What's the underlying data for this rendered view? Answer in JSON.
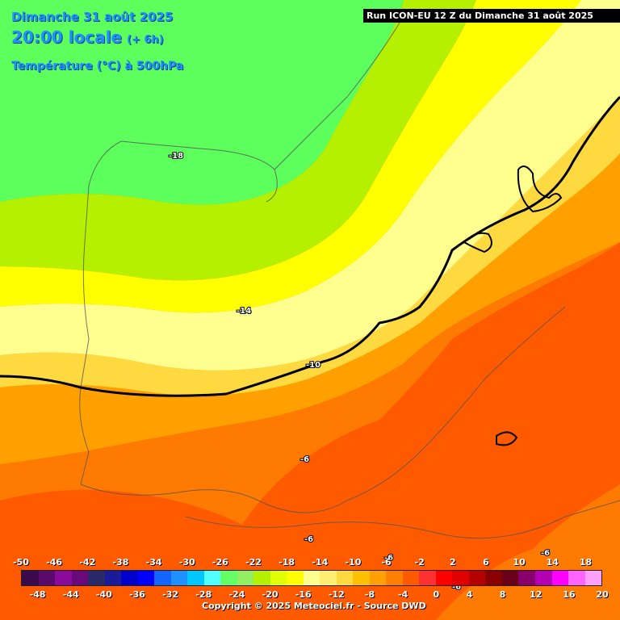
{
  "header": {
    "date": "Dimanche 31 août 2025",
    "time": "20:00 locale",
    "offset": "(+ 6h)",
    "parameter": "Température (°C) à 500hPa"
  },
  "run_label": "Run ICON-EU 12 Z du Dimanche 31 août 2025",
  "contour_labels": [
    "-18",
    "-14",
    "-10",
    "-6",
    "-6",
    "-6",
    "-6",
    "-6"
  ],
  "legend": {
    "top_labels": [
      "-50",
      "-46",
      "-42",
      "-38",
      "-34",
      "-30",
      "-26",
      "-22",
      "-18",
      "-14",
      "-10",
      "-6",
      "-2",
      "2",
      "6",
      "10",
      "14",
      "18"
    ],
    "bottom_labels": [
      "-48",
      "-44",
      "-40",
      "-36",
      "-32",
      "-28",
      "-24",
      "-20",
      "-16",
      "-12",
      "-8",
      "-4",
      "0",
      "4",
      "8",
      "12",
      "16",
      "20"
    ],
    "colors": [
      "#3a0a4a",
      "#5a0a6a",
      "#8a0a9a",
      "#6a0a7a",
      "#2a2a6a",
      "#1a1a9a",
      "#0000cc",
      "#0000ff",
      "#1464ff",
      "#1e90ff",
      "#00c8ff",
      "#50ffff",
      "#64ff64",
      "#90ee60",
      "#b4f000",
      "#e0ff00",
      "#ffff00",
      "#ffff90",
      "#ffef70",
      "#ffd940",
      "#ffc000",
      "#ffa000",
      "#ff8000",
      "#ff5a00",
      "#ff3030",
      "#ff0000",
      "#e00000",
      "#b40000",
      "#8a0000",
      "#6a0018",
      "#8a006a",
      "#b400b4",
      "#ff00ff",
      "#ff64ff",
      "#ffa0ff"
    ]
  },
  "colors": {
    "green": "#5cff5c",
    "yellow_green": "#b4f000",
    "yellow": "#ffff00",
    "pale_yellow": "#ffff90",
    "light_orange": "#ffd940",
    "orange": "#ffa000",
    "deep_orange": "#ff7a00",
    "red_orange": "#ff5a00"
  },
  "copyright": "Copyright © 2025 Meteociel.fr - Source DWD"
}
